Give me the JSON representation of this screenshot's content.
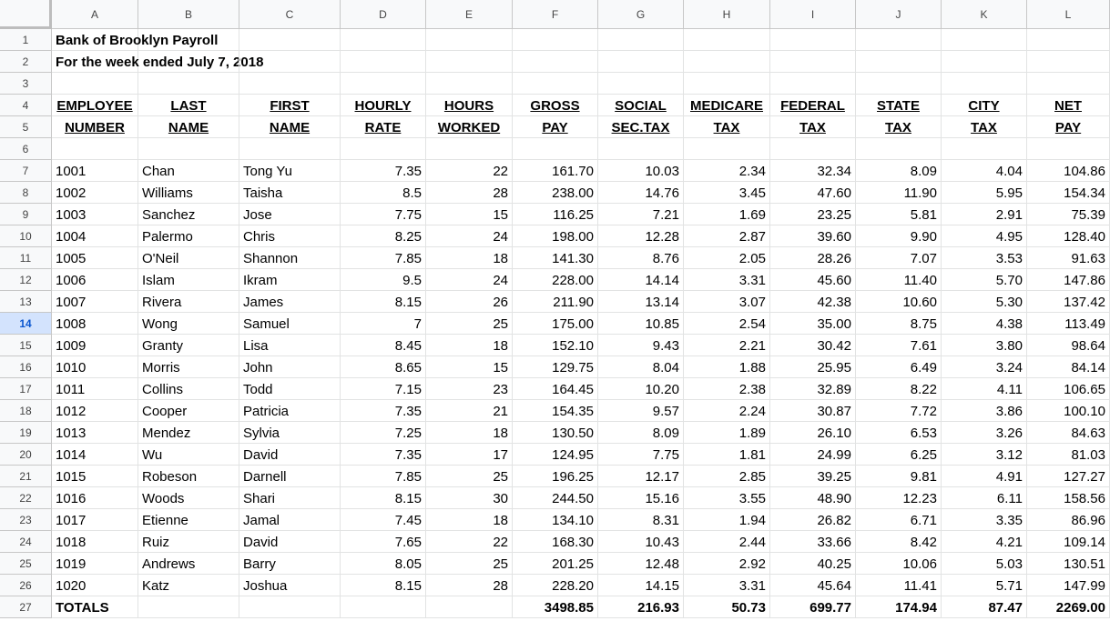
{
  "columns": [
    "A",
    "B",
    "C",
    "D",
    "E",
    "F",
    "G",
    "H",
    "I",
    "J",
    "K",
    "L"
  ],
  "title1": "Bank of Brooklyn Payroll",
  "title2": "For the week  ended July  7, 2018",
  "header_row4": [
    "EMPLOYEE ",
    "LAST",
    "FIRST",
    "HOURLY",
    "HOURS",
    "GROSS ",
    "SOCIAL",
    "MEDICARE",
    "FEDERAL",
    "STATE",
    "CITY",
    "NET"
  ],
  "header_row5": [
    "NUMBER",
    "NAME",
    "NAME",
    "RATE",
    "WORKED",
    "PAY",
    "SEC.TAX",
    "TAX",
    "TAX",
    "TAX",
    "TAX",
    "PAY"
  ],
  "employees": [
    [
      "1001",
      "Chan",
      "Tong Yu",
      "7.35",
      "22",
      "161.70",
      "10.03",
      "2.34",
      "32.34",
      "8.09",
      "4.04",
      "104.86"
    ],
    [
      "1002",
      "Williams",
      "Taisha",
      "8.5",
      "28",
      "238.00",
      "14.76",
      "3.45",
      "47.60",
      "11.90",
      "5.95",
      "154.34"
    ],
    [
      "1003",
      "Sanchez",
      "Jose",
      "7.75",
      "15",
      "116.25",
      "7.21",
      "1.69",
      "23.25",
      "5.81",
      "2.91",
      "75.39"
    ],
    [
      "1004",
      "Palermo",
      "Chris",
      "8.25",
      "24",
      "198.00",
      "12.28",
      "2.87",
      "39.60",
      "9.90",
      "4.95",
      "128.40"
    ],
    [
      "1005",
      "O'Neil",
      "Shannon",
      "7.85",
      "18",
      "141.30",
      "8.76",
      "2.05",
      "28.26",
      "7.07",
      "3.53",
      "91.63"
    ],
    [
      "1006",
      "Islam",
      "Ikram",
      "9.5",
      "24",
      "228.00",
      "14.14",
      "3.31",
      "45.60",
      "11.40",
      "5.70",
      "147.86"
    ],
    [
      "1007",
      "Rivera",
      "James",
      "8.15",
      "26",
      "211.90",
      "13.14",
      "3.07",
      "42.38",
      "10.60",
      "5.30",
      "137.42"
    ],
    [
      "1008",
      "Wong",
      "Samuel",
      "7",
      "25",
      "175.00",
      "10.85",
      "2.54",
      "35.00",
      "8.75",
      "4.38",
      "113.49"
    ],
    [
      "1009",
      "Granty",
      "Lisa",
      "8.45",
      "18",
      "152.10",
      "9.43",
      "2.21",
      "30.42",
      "7.61",
      "3.80",
      "98.64"
    ],
    [
      "1010",
      "Morris",
      "John",
      "8.65",
      "15",
      "129.75",
      "8.04",
      "1.88",
      "25.95",
      "6.49",
      "3.24",
      "84.14"
    ],
    [
      "1011",
      "Collins",
      "Todd",
      "7.15",
      "23",
      "164.45",
      "10.20",
      "2.38",
      "32.89",
      "8.22",
      "4.11",
      "106.65"
    ],
    [
      "1012",
      "Cooper",
      "Patricia",
      "7.35",
      "21",
      "154.35",
      "9.57",
      "2.24",
      "30.87",
      "7.72",
      "3.86",
      "100.10"
    ],
    [
      "1013",
      "Mendez",
      "Sylvia",
      "7.25",
      "18",
      "130.50",
      "8.09",
      "1.89",
      "26.10",
      "6.53",
      "3.26",
      "84.63"
    ],
    [
      "1014",
      "Wu",
      "David",
      "7.35",
      "17",
      "124.95",
      "7.75",
      "1.81",
      "24.99",
      "6.25",
      "3.12",
      "81.03"
    ],
    [
      "1015",
      "Robeson",
      "Darnell",
      "7.85",
      "25",
      "196.25",
      "12.17",
      "2.85",
      "39.25",
      "9.81",
      "4.91",
      "127.27"
    ],
    [
      "1016",
      "Woods",
      "Shari",
      "8.15",
      "30",
      "244.50",
      "15.16",
      "3.55",
      "48.90",
      "12.23",
      "6.11",
      "158.56"
    ],
    [
      "1017",
      "Etienne",
      "Jamal",
      "7.45",
      "18",
      "134.10",
      "8.31",
      "1.94",
      "26.82",
      "6.71",
      "3.35",
      "86.96"
    ],
    [
      "1018",
      "Ruiz",
      "David",
      "7.65",
      "22",
      "168.30",
      "10.43",
      "2.44",
      "33.66",
      "8.42",
      "4.21",
      "109.14"
    ],
    [
      "1019",
      "Andrews",
      "Barry",
      "8.05",
      "25",
      "201.25",
      "12.48",
      "2.92",
      "40.25",
      "10.06",
      "5.03",
      "130.51"
    ],
    [
      "1020",
      "Katz",
      "Joshua",
      "8.15",
      "28",
      "228.20",
      "14.15",
      "3.31",
      "45.64",
      "11.41",
      "5.71",
      "147.99"
    ]
  ],
  "totals": [
    "TOTALS",
    "",
    "",
    "",
    "",
    "3498.85",
    "216.93",
    "50.73",
    "699.77",
    "174.94",
    "87.47",
    "2269.00"
  ],
  "selected_row": 14
}
